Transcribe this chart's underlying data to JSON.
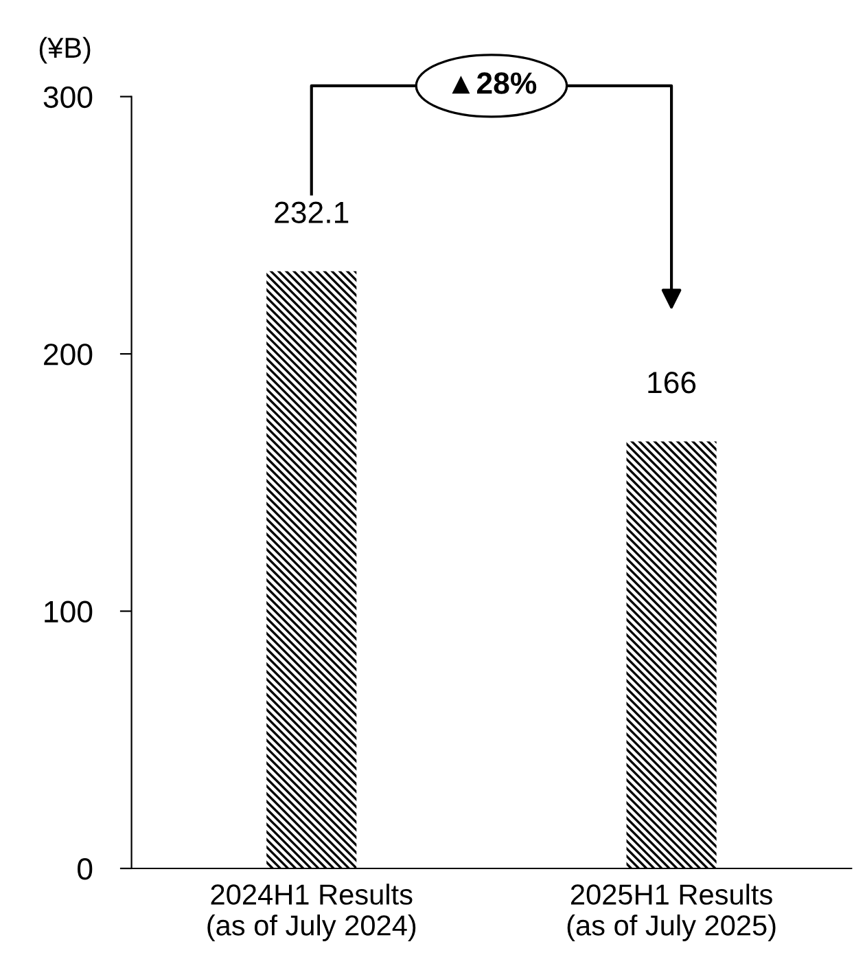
{
  "chart_data": {
    "type": "bar",
    "ylabel": "(¥B)",
    "categories": [
      "2024H1 Results\n(as of July 2024)",
      "2025H1 Results\n(as of July 2025)"
    ],
    "series": [
      {
        "color": "#000000",
        "values": [
          232.1,
          166
        ]
      }
    ],
    "ylim": [
      0,
      300
    ],
    "yticks": [
      0,
      100,
      200,
      300
    ],
    "data_labels": true,
    "grid": false,
    "legend": false,
    "annotations": [
      "▲28%"
    ]
  }
}
